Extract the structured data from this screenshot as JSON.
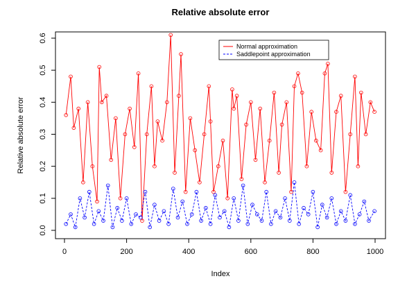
{
  "chart_data": {
    "type": "line",
    "title": "Relative absolute error",
    "xlabel": "Index",
    "ylabel": "Relative absolute error",
    "xlim": [
      0,
      1000
    ],
    "ylim": [
      0,
      0.6
    ],
    "xticks": [
      "0",
      "200",
      "400",
      "600",
      "800",
      "1000"
    ],
    "yticks": [
      "0.0",
      "0.1",
      "0.2",
      "0.3",
      "0.4",
      "0.5",
      "0.6"
    ],
    "grid": false,
    "legend_position": "top-right",
    "series": [
      {
        "name": "Normal approximation",
        "color": "#ff0000",
        "line_style": "solid",
        "marker": "open-circle",
        "x": [
          5,
          20,
          30,
          45,
          60,
          75,
          90,
          105,
          112,
          120,
          135,
          150,
          165,
          180,
          195,
          210,
          225,
          238,
          250,
          265,
          280,
          290,
          300,
          315,
          330,
          342,
          355,
          368,
          375,
          390,
          405,
          420,
          435,
          450,
          465,
          470,
          480,
          495,
          510,
          525,
          540,
          545,
          555,
          570,
          585,
          600,
          615,
          630,
          645,
          660,
          675,
          690,
          700,
          715,
          730,
          740,
          752,
          765,
          780,
          795,
          810,
          825,
          838,
          848,
          860,
          875,
          890,
          905,
          920,
          935,
          945,
          955,
          970,
          985,
          998
        ],
        "y": [
          0.36,
          0.48,
          0.32,
          0.38,
          0.15,
          0.4,
          0.2,
          0.09,
          0.51,
          0.4,
          0.42,
          0.22,
          0.35,
          0.1,
          0.3,
          0.38,
          0.26,
          0.49,
          0.03,
          0.3,
          0.45,
          0.2,
          0.34,
          0.28,
          0.4,
          0.61,
          0.18,
          0.42,
          0.55,
          0.12,
          0.35,
          0.25,
          0.15,
          0.3,
          0.45,
          0.34,
          0.12,
          0.2,
          0.28,
          0.1,
          0.44,
          0.38,
          0.42,
          0.16,
          0.33,
          0.4,
          0.22,
          0.38,
          0.15,
          0.28,
          0.43,
          0.18,
          0.33,
          0.4,
          0.12,
          0.45,
          0.49,
          0.43,
          0.2,
          0.37,
          0.28,
          0.25,
          0.49,
          0.52,
          0.18,
          0.37,
          0.42,
          0.12,
          0.3,
          0.48,
          0.2,
          0.43,
          0.3,
          0.4,
          0.37
        ]
      },
      {
        "name": "Saddlepoint approximation",
        "color": "#0000ff",
        "line_style": "dashed",
        "marker": "open-circle",
        "x": [
          5,
          20,
          35,
          50,
          65,
          80,
          95,
          110,
          125,
          140,
          155,
          170,
          185,
          200,
          215,
          230,
          245,
          260,
          275,
          290,
          305,
          320,
          335,
          350,
          365,
          380,
          395,
          410,
          425,
          440,
          455,
          470,
          485,
          500,
          515,
          530,
          545,
          560,
          575,
          590,
          605,
          620,
          635,
          650,
          665,
          680,
          695,
          710,
          725,
          740,
          755,
          770,
          785,
          800,
          815,
          830,
          845,
          860,
          875,
          890,
          905,
          920,
          935,
          950,
          965,
          980,
          998
        ],
        "y": [
          0.02,
          0.05,
          0.01,
          0.1,
          0.04,
          0.12,
          0.02,
          0.06,
          0.03,
          0.14,
          0.01,
          0.07,
          0.03,
          0.1,
          0.02,
          0.05,
          0.04,
          0.12,
          0.01,
          0.08,
          0.03,
          0.06,
          0.02,
          0.13,
          0.04,
          0.09,
          0.02,
          0.05,
          0.12,
          0.03,
          0.07,
          0.02,
          0.11,
          0.04,
          0.06,
          0.01,
          0.1,
          0.03,
          0.14,
          0.02,
          0.08,
          0.05,
          0.03,
          0.12,
          0.02,
          0.06,
          0.04,
          0.1,
          0.03,
          0.15,
          0.02,
          0.07,
          0.05,
          0.12,
          0.01,
          0.08,
          0.04,
          0.1,
          0.02,
          0.06,
          0.03,
          0.11,
          0.02,
          0.05,
          0.09,
          0.03,
          0.06
        ]
      }
    ]
  }
}
